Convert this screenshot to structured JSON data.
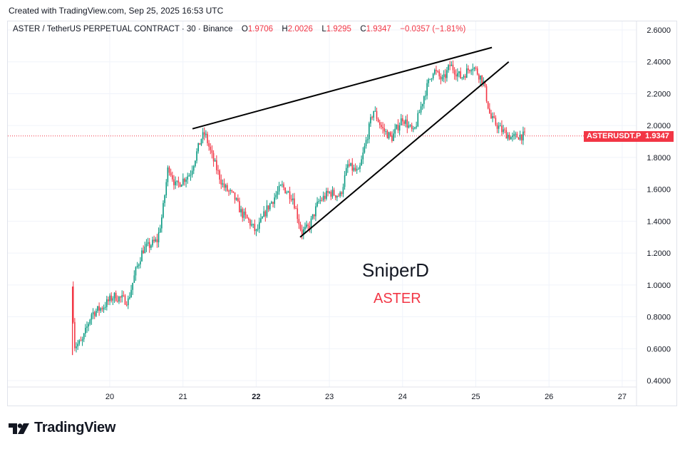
{
  "header": {
    "created_text": "Created with TradingView.com, Sep 25, 2025 16:53 UTC"
  },
  "legend": {
    "symbol_text": "ASTER / TetherUS PERPETUAL CONTRACT · 30 · Binance",
    "o_label": "O",
    "o_value": "1.9706",
    "h_label": "H",
    "h_value": "2.0026",
    "l_label": "L",
    "l_value": "1.9295",
    "c_label": "C",
    "c_value": "1.9347",
    "change": "−0.0357 (−1.81%)"
  },
  "watermark": {
    "name": "SniperD",
    "symbol": "ASTER"
  },
  "price_label": {
    "ticker": "ASTERUSDT.P",
    "value": "1.9347"
  },
  "logo": {
    "text": "TradingView"
  },
  "colors": {
    "up": "#089981",
    "down": "#f23645",
    "grid": "#f0f3fa",
    "text": "#131722"
  },
  "chart_data": {
    "type": "candlestick",
    "title": "ASTER / TetherUS PERPETUAL CONTRACT · 30 · Binance",
    "x_ticks": [
      {
        "day": 20,
        "label": "20",
        "bold": false
      },
      {
        "day": 21,
        "label": "21",
        "bold": false
      },
      {
        "day": 22,
        "label": "22",
        "bold": true
      },
      {
        "day": 23,
        "label": "23",
        "bold": false
      },
      {
        "day": 24,
        "label": "24",
        "bold": false
      },
      {
        "day": 25,
        "label": "25",
        "bold": false
      },
      {
        "day": 26,
        "label": "26",
        "bold": false
      },
      {
        "day": 27,
        "label": "27",
        "bold": false
      }
    ],
    "y_ticks": [
      "2.6000",
      "2.4000",
      "2.2000",
      "2.0000",
      "1.8000",
      "1.6000",
      "1.4000",
      "1.2000",
      "1.0000",
      "0.8000",
      "0.6000",
      "0.4000"
    ],
    "ylim": [
      0.4,
      2.6
    ],
    "last_price": 1.9347,
    "path": [
      [
        19.48,
        0.99
      ],
      [
        19.52,
        0.62
      ],
      [
        19.62,
        0.64
      ],
      [
        19.75,
        0.82
      ],
      [
        19.9,
        0.86
      ],
      [
        20.05,
        0.93
      ],
      [
        20.25,
        0.9
      ],
      [
        20.35,
        1.08
      ],
      [
        20.45,
        1.22
      ],
      [
        20.65,
        1.28
      ],
      [
        20.72,
        1.45
      ],
      [
        20.8,
        1.75
      ],
      [
        20.9,
        1.62
      ],
      [
        21.1,
        1.7
      ],
      [
        21.25,
        1.92
      ],
      [
        21.3,
        1.95
      ],
      [
        21.4,
        1.8
      ],
      [
        21.55,
        1.62
      ],
      [
        21.7,
        1.55
      ],
      [
        21.8,
        1.45
      ],
      [
        21.9,
        1.4
      ],
      [
        22.0,
        1.33
      ],
      [
        22.15,
        1.48
      ],
      [
        22.35,
        1.62
      ],
      [
        22.5,
        1.55
      ],
      [
        22.62,
        1.33
      ],
      [
        22.72,
        1.36
      ],
      [
        22.85,
        1.52
      ],
      [
        23.0,
        1.58
      ],
      [
        23.15,
        1.56
      ],
      [
        23.25,
        1.75
      ],
      [
        23.4,
        1.7
      ],
      [
        23.5,
        1.9
      ],
      [
        23.6,
        2.1
      ],
      [
        23.72,
        1.98
      ],
      [
        23.85,
        1.92
      ],
      [
        24.0,
        2.05
      ],
      [
        24.15,
        1.95
      ],
      [
        24.3,
        2.2
      ],
      [
        24.42,
        2.35
      ],
      [
        24.55,
        2.28
      ],
      [
        24.65,
        2.38
      ],
      [
        24.8,
        2.3
      ],
      [
        24.95,
        2.38
      ],
      [
        25.1,
        2.28
      ],
      [
        25.2,
        2.05
      ],
      [
        25.35,
        1.97
      ],
      [
        25.5,
        1.92
      ],
      [
        25.6,
        1.94
      ],
      [
        25.68,
        1.93
      ]
    ],
    "trendlines": [
      {
        "name": "resistance-line",
        "from": [
          21.13,
          1.98
        ],
        "to": [
          25.22,
          2.49
        ]
      },
      {
        "name": "support-line",
        "from": [
          22.6,
          1.3
        ],
        "to": [
          25.45,
          2.4
        ]
      }
    ]
  }
}
